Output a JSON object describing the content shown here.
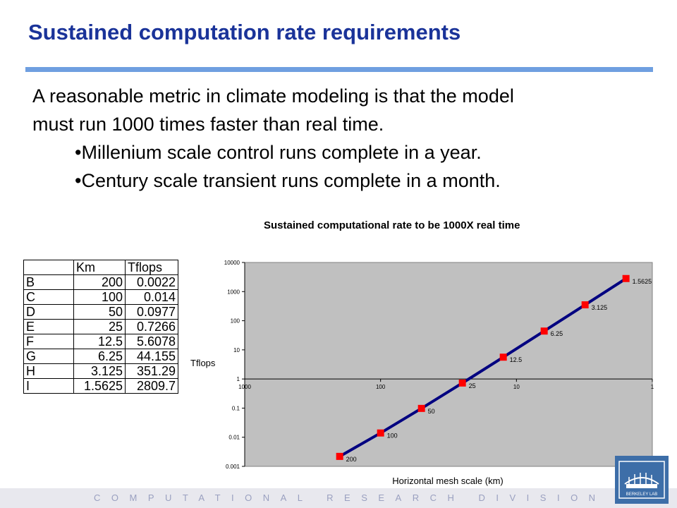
{
  "slide": {
    "title": "Sustained computation rate requirements",
    "intro_line1": "A reasonable metric in climate modeling is that the model",
    "intro_line2": "must run 1000 times faster than real time.",
    "bullets": [
      "•Millenium scale control runs complete in a year.",
      "•Century scale transient runs complete in a month."
    ],
    "footer": "COMPUTATIONAL RESEARCH DIVISION",
    "logo_text": "BERKELEY LAB"
  },
  "table": {
    "headers": [
      "",
      "Km",
      "Tflops"
    ],
    "rows": [
      [
        "B",
        "200",
        "0.0022"
      ],
      [
        "C",
        "100",
        "0.014"
      ],
      [
        "D",
        "50",
        "0.0977"
      ],
      [
        "E",
        "25",
        "0.7266"
      ],
      [
        "F",
        "12.5",
        "5.6078"
      ],
      [
        "G",
        "6.25",
        "44.155"
      ],
      [
        "H",
        "3.125",
        "351.29"
      ],
      [
        "I",
        "1.5625",
        "2809.7"
      ]
    ]
  },
  "colors": {
    "title": "#1a3399",
    "rule": "#6f9fe0",
    "plot_bg": "#c0c0c0",
    "line": "#000080",
    "marker": "#ff0000",
    "logo": "#3d6ea8"
  },
  "chart_data": {
    "type": "line",
    "title": "Sustained computational rate to be 1000X real time",
    "xlabel": "Horizontal mesh scale (km)",
    "ylabel": "Tflops",
    "x_scale": "log",
    "x_reversed": true,
    "y_scale": "log",
    "xlim": [
      1000,
      1
    ],
    "ylim": [
      0.001,
      10000
    ],
    "x_ticks": [
      1000,
      100,
      10,
      1
    ],
    "x_tick_labels": [
      "1000",
      "100",
      "10",
      "1"
    ],
    "y_ticks": [
      0.001,
      0.01,
      0.1,
      1,
      10,
      100,
      1000,
      10000
    ],
    "y_tick_labels": [
      "0.001",
      "0.01",
      "0.1",
      "1",
      "10",
      "100",
      "1000",
      "10000"
    ],
    "grid": false,
    "legend": false,
    "x": [
      200,
      100,
      50,
      25,
      12.5,
      6.25,
      3.125,
      1.5625
    ],
    "y": [
      0.0022,
      0.014,
      0.0977,
      0.7266,
      5.6078,
      44.155,
      351.29,
      2809.7
    ],
    "point_labels": [
      "200",
      "100",
      "50",
      "25",
      "12.5",
      "6.25",
      "3.125",
      "1.5625"
    ]
  }
}
